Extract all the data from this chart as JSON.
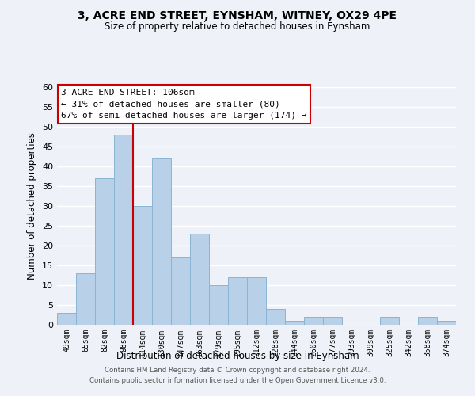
{
  "title": "3, ACRE END STREET, EYNSHAM, WITNEY, OX29 4PE",
  "subtitle": "Size of property relative to detached houses in Eynsham",
  "xlabel": "Distribution of detached houses by size in Eynsham",
  "ylabel": "Number of detached properties",
  "categories": [
    "49sqm",
    "65sqm",
    "82sqm",
    "98sqm",
    "114sqm",
    "130sqm",
    "147sqm",
    "163sqm",
    "179sqm",
    "195sqm",
    "212sqm",
    "228sqm",
    "244sqm",
    "260sqm",
    "277sqm",
    "293sqm",
    "309sqm",
    "325sqm",
    "342sqm",
    "358sqm",
    "374sqm"
  ],
  "values": [
    3,
    13,
    37,
    48,
    30,
    42,
    17,
    23,
    10,
    12,
    12,
    4,
    1,
    2,
    2,
    0,
    0,
    2,
    0,
    2,
    1
  ],
  "bar_color": "#b8d0e8",
  "bar_edge_color": "#8ab4d4",
  "annotation_label": "3 ACRE END STREET: 106sqm",
  "annotation_line1": "← 31% of detached houses are smaller (80)",
  "annotation_line2": "67% of semi-detached houses are larger (174) →",
  "annotation_box_facecolor": "#ffffff",
  "annotation_box_edgecolor": "#cc0000",
  "ylim": [
    0,
    60
  ],
  "yticks": [
    0,
    5,
    10,
    15,
    20,
    25,
    30,
    35,
    40,
    45,
    50,
    55,
    60
  ],
  "marker_line_color": "#cc0000",
  "marker_bin_index": 4,
  "footer_line1": "Contains HM Land Registry data © Crown copyright and database right 2024.",
  "footer_line2": "Contains public sector information licensed under the Open Government Licence v3.0.",
  "background_color": "#eef2f8",
  "grid_color": "#ffffff"
}
